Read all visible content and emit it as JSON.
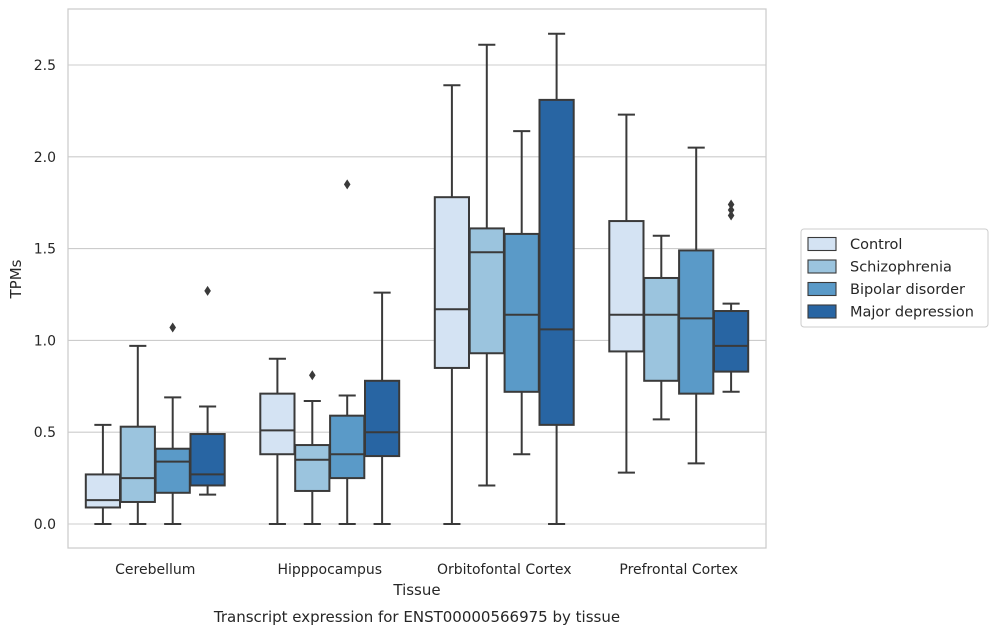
{
  "chart_data": {
    "type": "boxplot",
    "title": "",
    "xlabel": "Tissue",
    "ylabel": "TPMs",
    "caption": "Transcript expression for ENST00000566975 by tissue",
    "ylim": [
      -0.13,
      2.8
    ],
    "yticks": [
      "0.0",
      "0.5",
      "1.0",
      "1.5",
      "2.0",
      "2.5"
    ],
    "grid": "horizontal",
    "legend_position": "right",
    "categories": [
      "Cerebellum",
      "Hipppocampus",
      "Orbitofontal Cortex",
      "Prefrontal Cortex"
    ],
    "series": [
      {
        "name": "Control",
        "color": "#d4e3f3",
        "boxes": [
          {
            "whislo": 0.0,
            "q1": 0.09,
            "med": 0.13,
            "q3": 0.27,
            "whishi": 0.54,
            "fliers": []
          },
          {
            "whislo": 0.0,
            "q1": 0.38,
            "med": 0.51,
            "q3": 0.71,
            "whishi": 0.9,
            "fliers": []
          },
          {
            "whislo": 0.0,
            "q1": 0.85,
            "med": 1.17,
            "q3": 1.78,
            "whishi": 2.39,
            "fliers": []
          },
          {
            "whislo": 0.28,
            "q1": 0.94,
            "med": 1.14,
            "q3": 1.65,
            "whishi": 2.23,
            "fliers": []
          }
        ]
      },
      {
        "name": "Schizophrenia",
        "color": "#9bc4de",
        "boxes": [
          {
            "whislo": 0.0,
            "q1": 0.12,
            "med": 0.25,
            "q3": 0.53,
            "whishi": 0.97,
            "fliers": []
          },
          {
            "whislo": 0.0,
            "q1": 0.18,
            "med": 0.35,
            "q3": 0.43,
            "whishi": 0.67,
            "fliers": [
              0.81
            ]
          },
          {
            "whislo": 0.21,
            "q1": 0.93,
            "med": 1.48,
            "q3": 1.61,
            "whishi": 2.61,
            "fliers": []
          },
          {
            "whislo": 0.57,
            "q1": 0.78,
            "med": 1.14,
            "q3": 1.34,
            "whishi": 1.57,
            "fliers": []
          }
        ]
      },
      {
        "name": "Bipolar disorder",
        "color": "#5a9ac8",
        "boxes": [
          {
            "whislo": 0.0,
            "q1": 0.17,
            "med": 0.34,
            "q3": 0.41,
            "whishi": 0.69,
            "fliers": [
              1.07
            ]
          },
          {
            "whislo": 0.0,
            "q1": 0.25,
            "med": 0.38,
            "q3": 0.59,
            "whishi": 0.7,
            "fliers": [
              1.85
            ]
          },
          {
            "whislo": 0.38,
            "q1": 0.72,
            "med": 1.14,
            "q3": 1.58,
            "whishi": 2.14,
            "fliers": []
          },
          {
            "whislo": 0.33,
            "q1": 0.71,
            "med": 1.12,
            "q3": 1.49,
            "whishi": 2.05,
            "fliers": []
          }
        ]
      },
      {
        "name": "Major depression",
        "color": "#2865a3",
        "boxes": [
          {
            "whislo": 0.16,
            "q1": 0.21,
            "med": 0.27,
            "q3": 0.49,
            "whishi": 0.64,
            "fliers": [
              1.27
            ]
          },
          {
            "whislo": 0.0,
            "q1": 0.37,
            "med": 0.5,
            "q3": 0.78,
            "whishi": 1.26,
            "fliers": []
          },
          {
            "whislo": 0.0,
            "q1": 0.54,
            "med": 1.06,
            "q3": 2.31,
            "whishi": 2.67,
            "fliers": []
          },
          {
            "whislo": 0.72,
            "q1": 0.83,
            "med": 0.97,
            "q3": 1.16,
            "whishi": 1.2,
            "fliers": [
              1.68,
              1.71,
              1.74
            ]
          }
        ]
      }
    ]
  }
}
